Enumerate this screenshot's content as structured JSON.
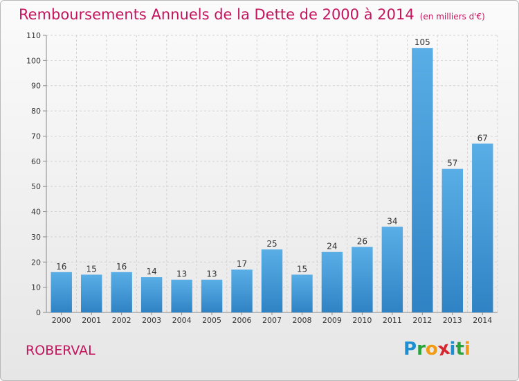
{
  "header": {
    "title": "Remboursements Annuels de la Dette de 2000 à 2014",
    "subtitle": "(en milliers d'€)"
  },
  "footer": {
    "place": "ROBERVAL",
    "logo": {
      "letters": [
        "P",
        "r",
        "o",
        "x",
        "i",
        "t",
        "i"
      ],
      "colors": [
        "#1d8fd1",
        "#2aa33b",
        "#f29b14",
        "#d8262e",
        "#1d8fd1",
        "#2aa33b",
        "#f29b14"
      ]
    }
  },
  "chart_data": {
    "type": "bar",
    "title": "Remboursements Annuels de la Dette de 2000 à 2014",
    "subtitle": "(en milliers d'€)",
    "xlabel": "",
    "ylabel": "",
    "categories": [
      "2000",
      "2001",
      "2002",
      "2003",
      "2004",
      "2005",
      "2006",
      "2007",
      "2008",
      "2009",
      "2010",
      "2011",
      "2012",
      "2013",
      "2014"
    ],
    "values": [
      16,
      15,
      16,
      14,
      13,
      13,
      17,
      25,
      15,
      24,
      26,
      34,
      105,
      57,
      67
    ],
    "ylim": [
      0,
      110
    ],
    "yticks": [
      0,
      10,
      20,
      30,
      40,
      50,
      60,
      70,
      80,
      90,
      100,
      110
    ],
    "grid": true,
    "bar_color_light": "#5aaee6",
    "bar_color_dark": "#2f83c4"
  }
}
